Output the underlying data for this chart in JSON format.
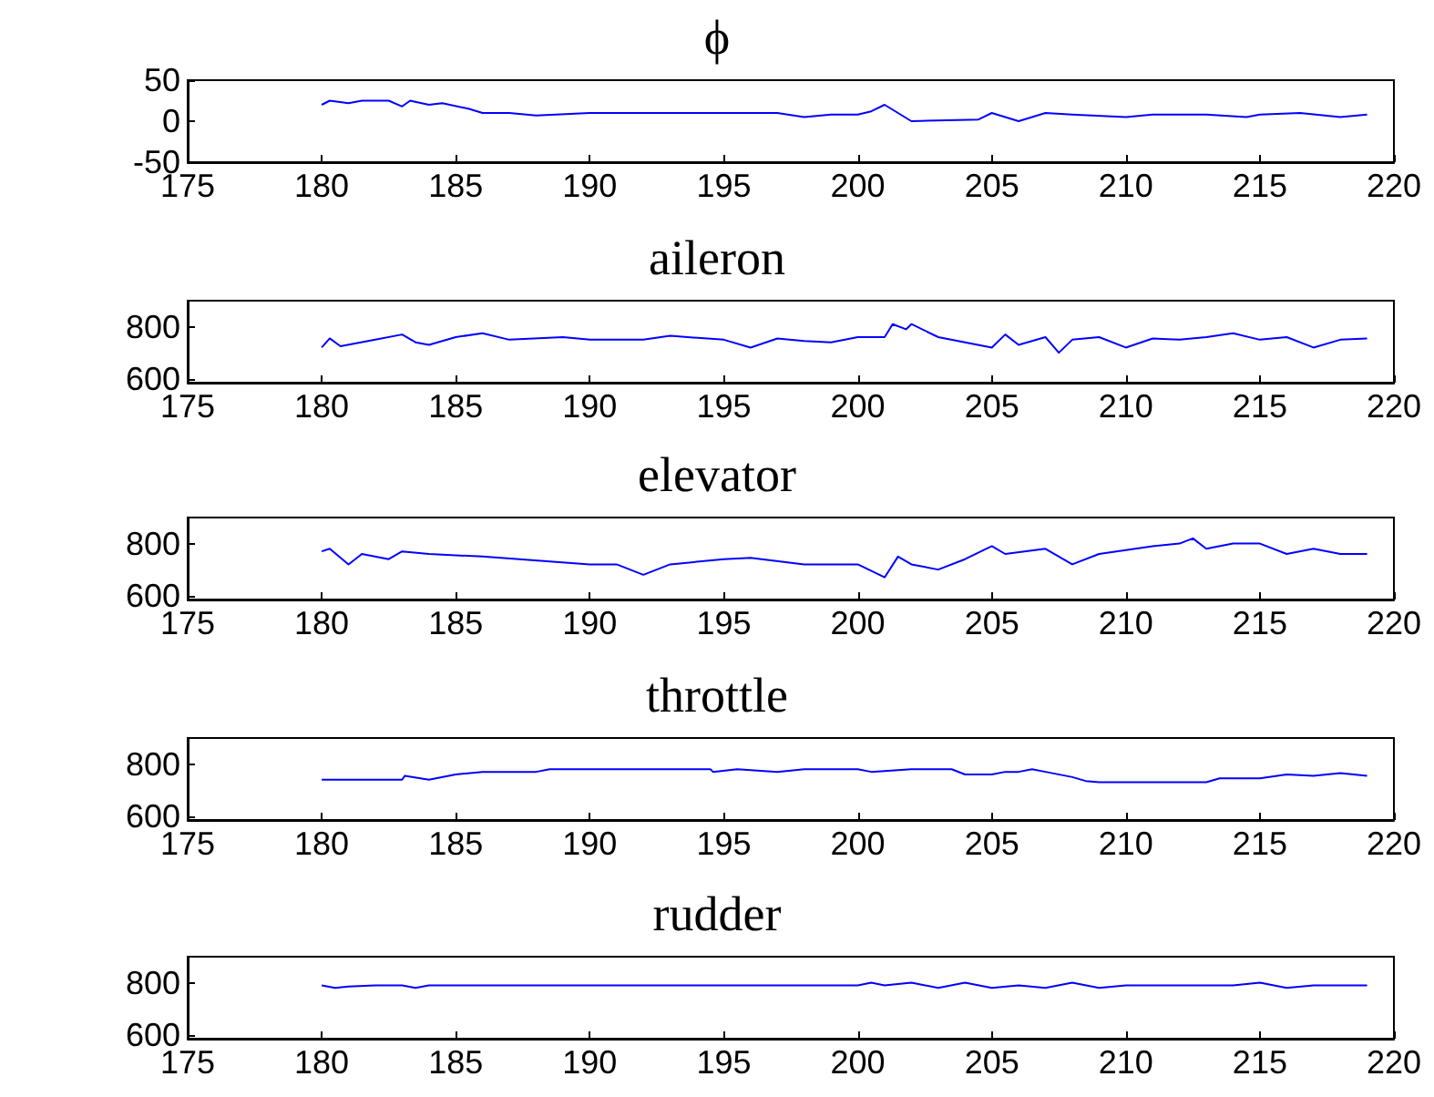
{
  "chart_data": [
    {
      "type": "line",
      "title": "ϕ",
      "xlim": [
        175,
        220
      ],
      "xticks": [
        175,
        180,
        185,
        190,
        195,
        200,
        205,
        210,
        215,
        220
      ],
      "ylim": [
        -50,
        50
      ],
      "yticks": [
        -50,
        0,
        50
      ],
      "grid": false,
      "marker": "none",
      "line_style": "solid",
      "x": [
        180,
        180.3,
        181,
        181.5,
        182.5,
        183,
        183.3,
        184,
        184.5,
        185.5,
        186,
        187,
        188,
        190,
        192,
        195,
        197,
        198,
        199,
        200,
        200.5,
        201,
        201.5,
        202,
        204.5,
        205,
        205.5,
        206,
        207,
        208,
        210,
        211,
        213,
        214.5,
        215,
        216.5,
        218,
        219
      ],
      "series": [
        {
          "color": "#0000ff",
          "values": [
            20,
            25,
            22,
            25,
            25,
            18,
            25,
            20,
            22,
            15,
            10,
            10,
            7,
            10,
            10,
            10,
            10,
            5,
            8,
            8,
            12,
            20,
            10,
            0,
            2,
            10,
            5,
            0,
            10,
            8,
            5,
            8,
            8,
            5,
            8,
            10,
            5,
            8
          ]
        }
      ]
    },
    {
      "type": "line",
      "title": "aileron",
      "xlim": [
        175,
        220
      ],
      "xticks": [
        175,
        180,
        185,
        190,
        195,
        200,
        205,
        210,
        215,
        220
      ],
      "ylim": [
        585,
        900
      ],
      "yticks": [
        600,
        800
      ],
      "grid": false,
      "marker": "none",
      "line_style": "solid",
      "x": [
        180,
        180.3,
        180.7,
        182,
        183,
        183.5,
        184,
        185,
        186,
        187,
        189,
        190,
        192,
        193,
        195,
        196,
        197,
        198,
        199,
        200,
        201,
        201.3,
        201.8,
        202,
        203,
        204,
        205,
        205.5,
        206,
        207,
        207.5,
        208,
        209,
        210,
        211,
        212,
        213,
        214,
        215,
        216,
        217,
        218,
        219
      ],
      "series": [
        {
          "color": "#0000ff",
          "values": [
            720,
            755,
            725,
            750,
            770,
            740,
            730,
            760,
            775,
            750,
            760,
            750,
            750,
            765,
            750,
            720,
            755,
            745,
            740,
            760,
            760,
            810,
            790,
            810,
            760,
            740,
            720,
            770,
            730,
            760,
            700,
            750,
            760,
            720,
            755,
            750,
            760,
            775,
            750,
            760,
            720,
            750,
            755
          ]
        }
      ]
    },
    {
      "type": "line",
      "title": "elevator",
      "xlim": [
        175,
        220
      ],
      "xticks": [
        175,
        180,
        185,
        190,
        195,
        200,
        205,
        210,
        215,
        220
      ],
      "ylim": [
        585,
        900
      ],
      "yticks": [
        600,
        800
      ],
      "grid": false,
      "marker": "none",
      "line_style": "solid",
      "x": [
        180,
        180.3,
        181,
        181.5,
        182.5,
        183,
        184,
        186,
        190,
        191,
        192,
        193,
        195,
        196,
        198,
        200,
        201,
        201.5,
        202,
        203,
        204,
        205,
        205.5,
        207,
        208,
        209,
        211,
        212,
        212.5,
        213,
        214,
        215,
        216,
        217,
        218,
        219
      ],
      "series": [
        {
          "color": "#0000ff",
          "values": [
            770,
            780,
            720,
            760,
            740,
            770,
            760,
            750,
            720,
            720,
            680,
            720,
            740,
            745,
            720,
            720,
            670,
            750,
            720,
            700,
            740,
            790,
            760,
            780,
            720,
            760,
            790,
            800,
            820,
            780,
            800,
            800,
            760,
            780,
            760,
            760
          ]
        }
      ]
    },
    {
      "type": "line",
      "title": "throttle",
      "xlim": [
        175,
        220
      ],
      "xticks": [
        175,
        180,
        185,
        190,
        195,
        200,
        205,
        210,
        215,
        220
      ],
      "ylim": [
        585,
        900
      ],
      "yticks": [
        600,
        800
      ],
      "grid": false,
      "marker": "none",
      "line_style": "solid",
      "x": [
        180,
        183,
        183.1,
        184,
        185,
        186,
        188,
        188.5,
        194.5,
        194.6,
        195.5,
        197,
        198,
        200,
        200.5,
        202,
        203.5,
        204,
        205,
        205.5,
        206,
        206.5,
        207,
        208,
        208.5,
        209,
        213,
        213.5,
        215,
        216,
        217,
        218,
        219
      ],
      "series": [
        {
          "color": "#0000ff",
          "values": [
            740,
            740,
            755,
            740,
            760,
            770,
            770,
            780,
            780,
            770,
            780,
            770,
            780,
            780,
            770,
            780,
            780,
            760,
            760,
            770,
            770,
            780,
            770,
            750,
            735,
            730,
            730,
            745,
            745,
            760,
            755,
            765,
            755
          ]
        }
      ]
    },
    {
      "type": "line",
      "title": "rudder",
      "xlim": [
        175,
        220
      ],
      "xticks": [
        175,
        180,
        185,
        190,
        195,
        200,
        205,
        210,
        215,
        220
      ],
      "ylim": [
        585,
        900
      ],
      "yticks": [
        600,
        800
      ],
      "grid": false,
      "marker": "none",
      "line_style": "solid",
      "x": [
        180,
        180.5,
        181,
        182,
        183,
        183.5,
        184,
        200,
        200.5,
        201,
        202,
        203,
        204,
        205,
        206,
        207,
        208,
        209,
        210,
        214,
        215,
        216,
        217,
        219
      ],
      "series": [
        {
          "color": "#0000ff",
          "values": [
            790,
            780,
            785,
            790,
            790,
            780,
            790,
            790,
            800,
            790,
            800,
            780,
            800,
            780,
            790,
            780,
            800,
            780,
            790,
            790,
            800,
            780,
            790,
            790
          ]
        }
      ]
    }
  ]
}
